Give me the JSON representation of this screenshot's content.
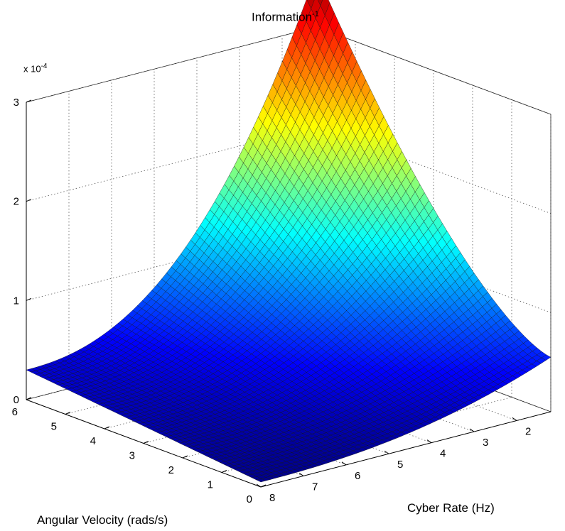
{
  "chart_data": {
    "type": "surface",
    "title": "Information",
    "title_superscript": "-1",
    "xlabel": "Cyber Rate (Hz)",
    "ylabel": "Angular Velocity (rads/s)",
    "zlabel": "",
    "z_exponent_label": "x 10",
    "z_exponent_power": "-4",
    "x_ticks": [
      "2",
      "3",
      "4",
      "5",
      "6",
      "7",
      "8"
    ],
    "y_ticks": [
      "0",
      "1",
      "2",
      "3",
      "4",
      "5",
      "6"
    ],
    "z_ticks": [
      "0",
      "1",
      "2",
      "3"
    ],
    "xlim": [
      1.2,
      8
    ],
    "ylim": [
      0,
      6
    ],
    "zlim": [
      0,
      3.0
    ],
    "z_scale": 0.0001,
    "corner_values": [
      {
        "x": 1.2,
        "y": 0,
        "z": 0.55
      },
      {
        "x": 8,
        "y": 0,
        "z": 0.05
      },
      {
        "x": 8,
        "y": 6,
        "z": 0.3
      },
      {
        "x": 1.2,
        "y": 6,
        "z": 3.55
      }
    ],
    "colormap": "jet",
    "grid": true
  }
}
